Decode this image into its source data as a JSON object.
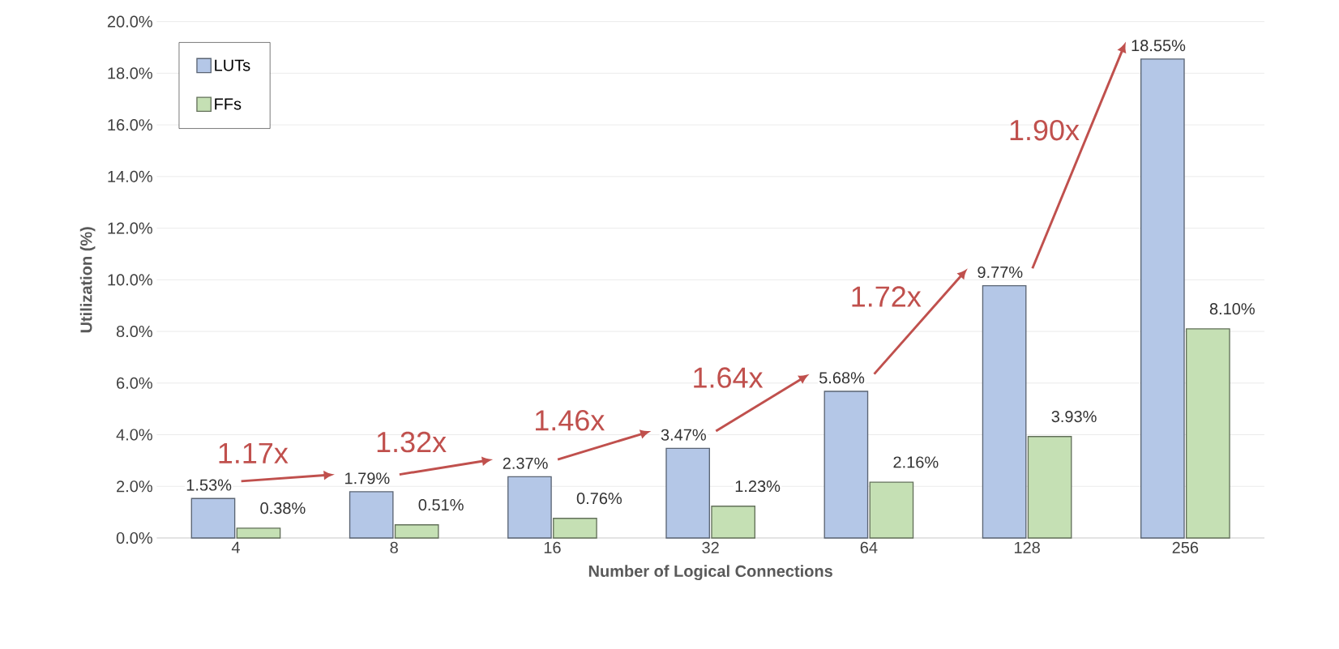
{
  "chart_data": {
    "type": "bar",
    "xlabel": "Number of Logical Connections",
    "ylabel": "Utilization (%)",
    "categories": [
      "4",
      "8",
      "16",
      "32",
      "64",
      "128",
      "256"
    ],
    "series": [
      {
        "name": "LUTs",
        "color": "#b4c7e7",
        "values": [
          1.53,
          1.79,
          2.37,
          3.47,
          5.68,
          9.77,
          18.55
        ],
        "value_labels": [
          "1.53%",
          "1.79%",
          "2.37%",
          "3.47%",
          "5.68%",
          "9.77%",
          "18.55%"
        ]
      },
      {
        "name": "FFs",
        "color": "#c5e0b4",
        "values": [
          0.38,
          0.51,
          0.76,
          1.23,
          2.16,
          3.93,
          8.1
        ],
        "value_labels": [
          "0.38%",
          "0.51%",
          "0.76%",
          "1.23%",
          "2.16%",
          "3.93%",
          "8.10%"
        ]
      }
    ],
    "ylim": [
      0,
      20
    ],
    "yticks": [
      {
        "value": 0,
        "label": "0.0%"
      },
      {
        "value": 2,
        "label": "2.0%"
      },
      {
        "value": 4,
        "label": "4.0%"
      },
      {
        "value": 6,
        "label": "6.0%"
      },
      {
        "value": 8,
        "label": "8.0%"
      },
      {
        "value": 10,
        "label": "10.0%"
      },
      {
        "value": 12,
        "label": "12.0%"
      },
      {
        "value": 14,
        "label": "14.0%"
      },
      {
        "value": 16,
        "label": "16.0%"
      },
      {
        "value": 18,
        "label": "18.0%"
      },
      {
        "value": 20,
        "label": "20.0%"
      }
    ],
    "annotations": [
      "1.17x",
      "1.32x",
      "1.46x",
      "1.64x",
      "1.72x",
      "1.90x"
    ],
    "grid": "y",
    "legend": "top left"
  }
}
